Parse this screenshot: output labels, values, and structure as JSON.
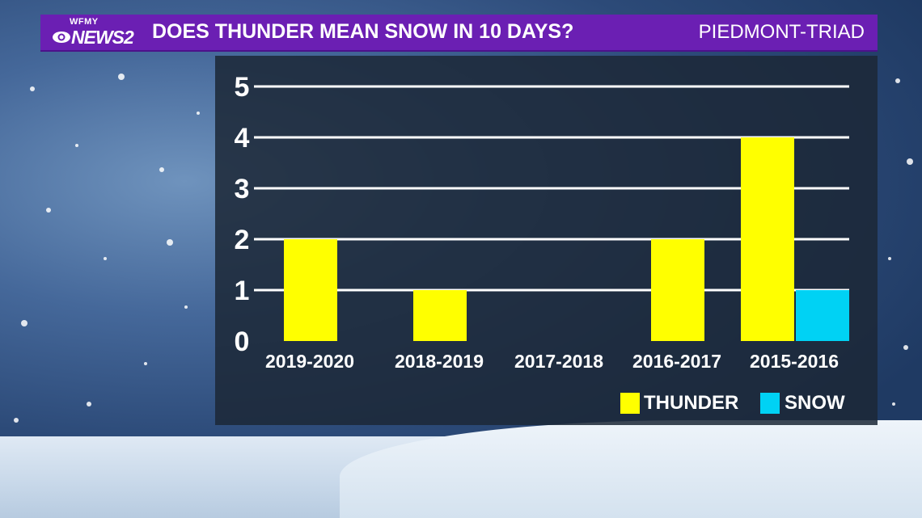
{
  "header": {
    "logo_top": "WFMY",
    "logo_main": "NEWS2",
    "title": "DOES THUNDER MEAN SNOW IN 10 DAYS?",
    "region": "PIEDMONT-TRIAD"
  },
  "colors": {
    "header_bg": "#6b1fb3",
    "thunder": "#ffff00",
    "snow": "#00d2f4",
    "gridline": "#ffffff"
  },
  "legend": {
    "thunder": "THUNDER",
    "snow": "SNOW"
  },
  "chart_data": {
    "type": "bar",
    "categories": [
      "2019-2020",
      "2018-2019",
      "2017-2018",
      "2016-2017",
      "2015-2016"
    ],
    "series": [
      {
        "name": "THUNDER",
        "values": [
          2,
          1,
          0,
          2,
          4
        ]
      },
      {
        "name": "SNOW",
        "values": [
          0,
          0,
          0,
          0,
          1
        ]
      }
    ],
    "yticks": [
      0,
      1,
      2,
      3,
      4,
      5
    ],
    "ylim": [
      0,
      5
    ],
    "grid": true,
    "legend_position": "bottom-right"
  }
}
